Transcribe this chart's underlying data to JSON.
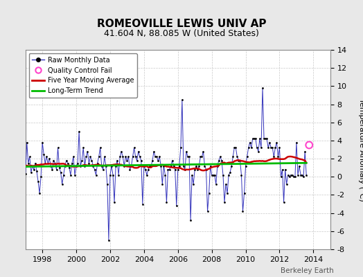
{
  "title": "ROMEOVILLE LEWIS UNIV AP",
  "subtitle": "41.604 N, 88.085 W (United States)",
  "ylabel": "Temperature Anomaly (°C)",
  "watermark": "Berkeley Earth",
  "ylim": [
    -8,
    14
  ],
  "yticks": [
    -8,
    -6,
    -4,
    -2,
    0,
    2,
    4,
    6,
    8,
    10,
    12,
    14
  ],
  "xlim": [
    1997.0,
    2015.0
  ],
  "xticks": [
    1998,
    2000,
    2002,
    2004,
    2006,
    2008,
    2010,
    2012,
    2014
  ],
  "bg_color": "#e8e8e8",
  "plot_bg": "#ffffff",
  "raw_color": "#3333bb",
  "dot_color": "#000000",
  "ma_color": "#cc0000",
  "trend_color": "#00bb00",
  "qc_color": "#ff44cc",
  "legend_raw": "Raw Monthly Data",
  "legend_qc": "Quality Control Fail",
  "legend_ma": "Five Year Moving Average",
  "legend_trend": "Long-Term Trend",
  "raw_data": [
    0.3,
    3.8,
    1.5,
    2.2,
    0.5,
    1.2,
    0.8,
    1.5,
    0.6,
    -0.5,
    -1.8,
    0.0,
    3.8,
    2.5,
    1.5,
    2.2,
    1.5,
    2.0,
    1.2,
    0.8,
    1.8,
    1.5,
    0.8,
    3.2,
    1.0,
    0.5,
    -0.8,
    0.2,
    1.2,
    1.8,
    1.5,
    1.0,
    0.2,
    1.5,
    2.2,
    0.2,
    1.2,
    1.5,
    5.0,
    1.2,
    1.8,
    3.2,
    1.2,
    2.2,
    2.8,
    1.5,
    2.2,
    1.8,
    1.2,
    0.8,
    0.2,
    1.5,
    2.2,
    3.2,
    1.2,
    0.8,
    2.2,
    1.2,
    -0.8,
    -7.0,
    0.2,
    1.2,
    0.2,
    -2.8,
    1.2,
    1.8,
    0.2,
    2.2,
    2.8,
    2.2,
    1.2,
    2.2,
    1.8,
    2.2,
    0.8,
    1.2,
    2.2,
    3.2,
    2.2,
    1.8,
    2.8,
    2.2,
    1.8,
    -3.0,
    1.2,
    0.8,
    0.2,
    0.8,
    1.2,
    1.2,
    1.8,
    2.8,
    2.2,
    2.2,
    1.8,
    2.2,
    1.2,
    -0.8,
    1.2,
    0.2,
    -2.8,
    0.8,
    0.8,
    1.2,
    1.8,
    1.2,
    0.8,
    -3.2,
    0.8,
    1.2,
    3.2,
    8.5,
    1.2,
    0.8,
    2.8,
    2.2,
    2.2,
    -4.8,
    0.2,
    -0.8,
    0.8,
    1.2,
    0.8,
    1.2,
    2.2,
    2.2,
    2.8,
    1.2,
    0.8,
    -3.8,
    -1.8,
    1.2,
    0.2,
    0.2,
    0.2,
    -0.8,
    1.2,
    1.8,
    2.2,
    1.8,
    0.2,
    -2.8,
    -0.8,
    -1.8,
    0.2,
    0.5,
    1.2,
    2.2,
    3.2,
    3.2,
    2.2,
    1.8,
    1.8,
    0.2,
    -3.8,
    -1.8,
    1.2,
    2.2,
    3.2,
    3.8,
    3.2,
    4.2,
    4.2,
    4.2,
    3.2,
    2.8,
    4.2,
    3.2,
    9.8,
    4.2,
    4.2,
    4.2,
    3.2,
    3.8,
    3.2,
    3.2,
    2.2,
    3.2,
    3.8,
    2.2,
    3.2,
    0.0,
    0.8,
    -2.8,
    0.8,
    -0.8,
    0.2,
    0.0,
    0.2,
    0.2,
    0.0,
    0.0,
    3.8,
    0.2,
    1.2,
    0.2,
    0.2,
    0.0,
    2.8,
    0.2
  ],
  "start_year": 1997.0,
  "months_per_year": 12,
  "qc_fail_time": 2013.75,
  "qc_fail_value": 3.5
}
